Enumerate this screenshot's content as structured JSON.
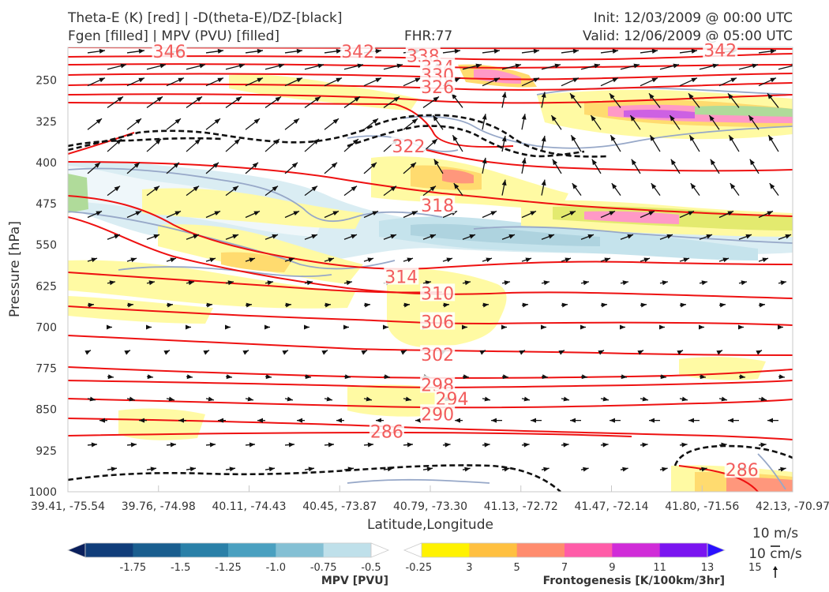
{
  "header": {
    "title_line1": "Theta-E (K) [red] | -D(theta-E)/DZ-[black]",
    "title_line2": "Fgen [filled] | MPV (PVU) [filled]",
    "fhr": "FHR:77",
    "init": "Init: 12/03/2009 @ 00:00 UTC",
    "valid": "Valid: 12/06/2009 @ 05:00 UTC"
  },
  "chart_data": {
    "type": "cross-section",
    "ylabel": "Pressure [hPa]",
    "xlabel": "Latitude,Longitude",
    "y_ticks": [
      "250",
      "325",
      "400",
      "475",
      "550",
      "625",
      "700",
      "775",
      "850",
      "925",
      "1000"
    ],
    "x_ticks": [
      "39.41, -75.54",
      "39.76, -74.98",
      "40.11, -74.43",
      "40.45, -73.87",
      "40.79, -73.30",
      "41.13, -72.72",
      "41.47, -72.14",
      "41.80, -71.56",
      "42.13, -70.97"
    ],
    "ylim": [
      1000,
      190
    ],
    "theta_e_labels": [
      {
        "value": "346",
        "p": 197,
        "x": 0.14
      },
      {
        "value": "342",
        "p": 197,
        "x": 0.4
      },
      {
        "value": "338",
        "p": 205,
        "x": 0.49
      },
      {
        "value": "334",
        "p": 225,
        "x": 0.51
      },
      {
        "value": "330",
        "p": 240,
        "x": 0.51
      },
      {
        "value": "326",
        "p": 262,
        "x": 0.51
      },
      {
        "value": "342",
        "p": 195,
        "x": 0.9
      },
      {
        "value": "322",
        "p": 370,
        "x": 0.47
      },
      {
        "value": "318",
        "p": 478,
        "x": 0.51
      },
      {
        "value": "314",
        "p": 608,
        "x": 0.46
      },
      {
        "value": "310",
        "p": 638,
        "x": 0.51
      },
      {
        "value": "306",
        "p": 690,
        "x": 0.51
      },
      {
        "value": "302",
        "p": 750,
        "x": 0.51
      },
      {
        "value": "298",
        "p": 805,
        "x": 0.51
      },
      {
        "value": "294",
        "p": 830,
        "x": 0.53
      },
      {
        "value": "290",
        "p": 858,
        "x": 0.51
      },
      {
        "value": "286",
        "p": 890,
        "x": 0.44
      },
      {
        "value": "286",
        "p": 960,
        "x": 0.93
      }
    ],
    "wind_reference": {
      "u_label": "10 m/s",
      "w_label": "10 cm/s"
    }
  },
  "colorbars": {
    "mpv": {
      "title": "MPV [PVU]",
      "tick_labels": [
        "-1.75",
        "-1.5",
        "-1.25",
        "-1.0",
        "-0.75",
        "-0.5",
        "-0.25"
      ],
      "colors": [
        "#0a1f5c",
        "#103d7a",
        "#1a5e8f",
        "#2a80a8",
        "#4aa0c0",
        "#84c0d4",
        "#bfe0ea",
        "#ffffff"
      ]
    },
    "fgen": {
      "title": "Frontogenesis [K/100km/3hr]",
      "tick_labels": [
        "3",
        "5",
        "7",
        "9",
        "11",
        "13",
        "15"
      ],
      "colors": [
        "#ffffff",
        "#fff200",
        "#ffc040",
        "#ff8c6e",
        "#ff5ca8",
        "#d02cd8",
        "#7a14f0",
        "#2a10ff"
      ]
    }
  }
}
